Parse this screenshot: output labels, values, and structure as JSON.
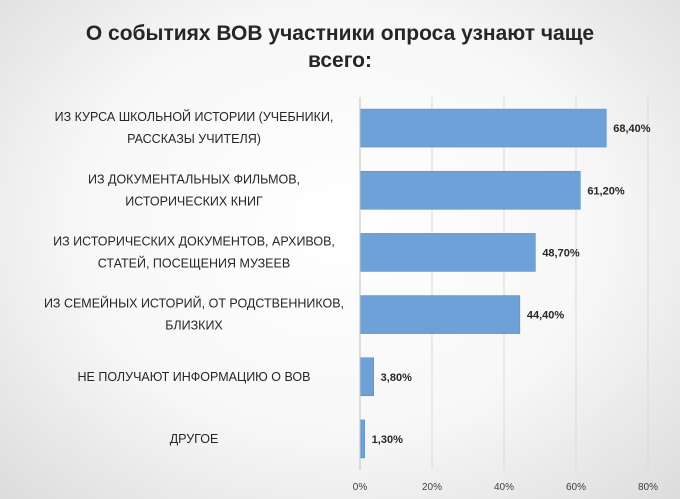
{
  "chart_data": {
    "type": "bar",
    "orientation": "horizontal",
    "title": "О событиях ВОВ участники опроса узнают чаще всего:",
    "categories": [
      [
        "ИЗ КУРСА ШКОЛЬНОЙ ИСТОРИИ (УЧЕБНИКИ,",
        "РАССКАЗЫ УЧИТЕЛЯ)"
      ],
      [
        "ИЗ ДОКУМЕНТАЛЬНЫХ ФИЛЬМОВ,",
        "ИСТОРИЧЕСКИХ КНИГ"
      ],
      [
        "ИЗ ИСТОРИЧЕСКИХ ДОКУМЕНТОВ, АРХИВОВ,",
        "СТАТЕЙ, ПОСЕЩЕНИЯ МУЗЕЕВ"
      ],
      [
        "ИЗ СЕМЕЙНЫХ ИСТОРИЙ, ОТ РОДСТВЕННИКОВ,",
        "БЛИЗКИХ"
      ],
      [
        "НЕ ПОЛУЧАЮТ ИНФОРМАЦИЮ О ВОВ"
      ],
      [
        "ДРУГОЕ"
      ]
    ],
    "values": [
      68.4,
      61.2,
      48.7,
      44.4,
      3.8,
      1.3
    ],
    "value_labels": [
      "68,40%",
      "61,20%",
      "48,70%",
      "44,40%",
      "3,80%",
      "1,30%"
    ],
    "x_ticks": [
      "0%",
      "20%",
      "40%",
      "60%",
      "80%"
    ],
    "xlim": [
      0,
      80
    ],
    "grid": true,
    "bar_color": "#6fa1d9",
    "bar_edge_color": "#5b8fcb",
    "grid_color": "#d9d9d9",
    "text_color": "#262626"
  }
}
